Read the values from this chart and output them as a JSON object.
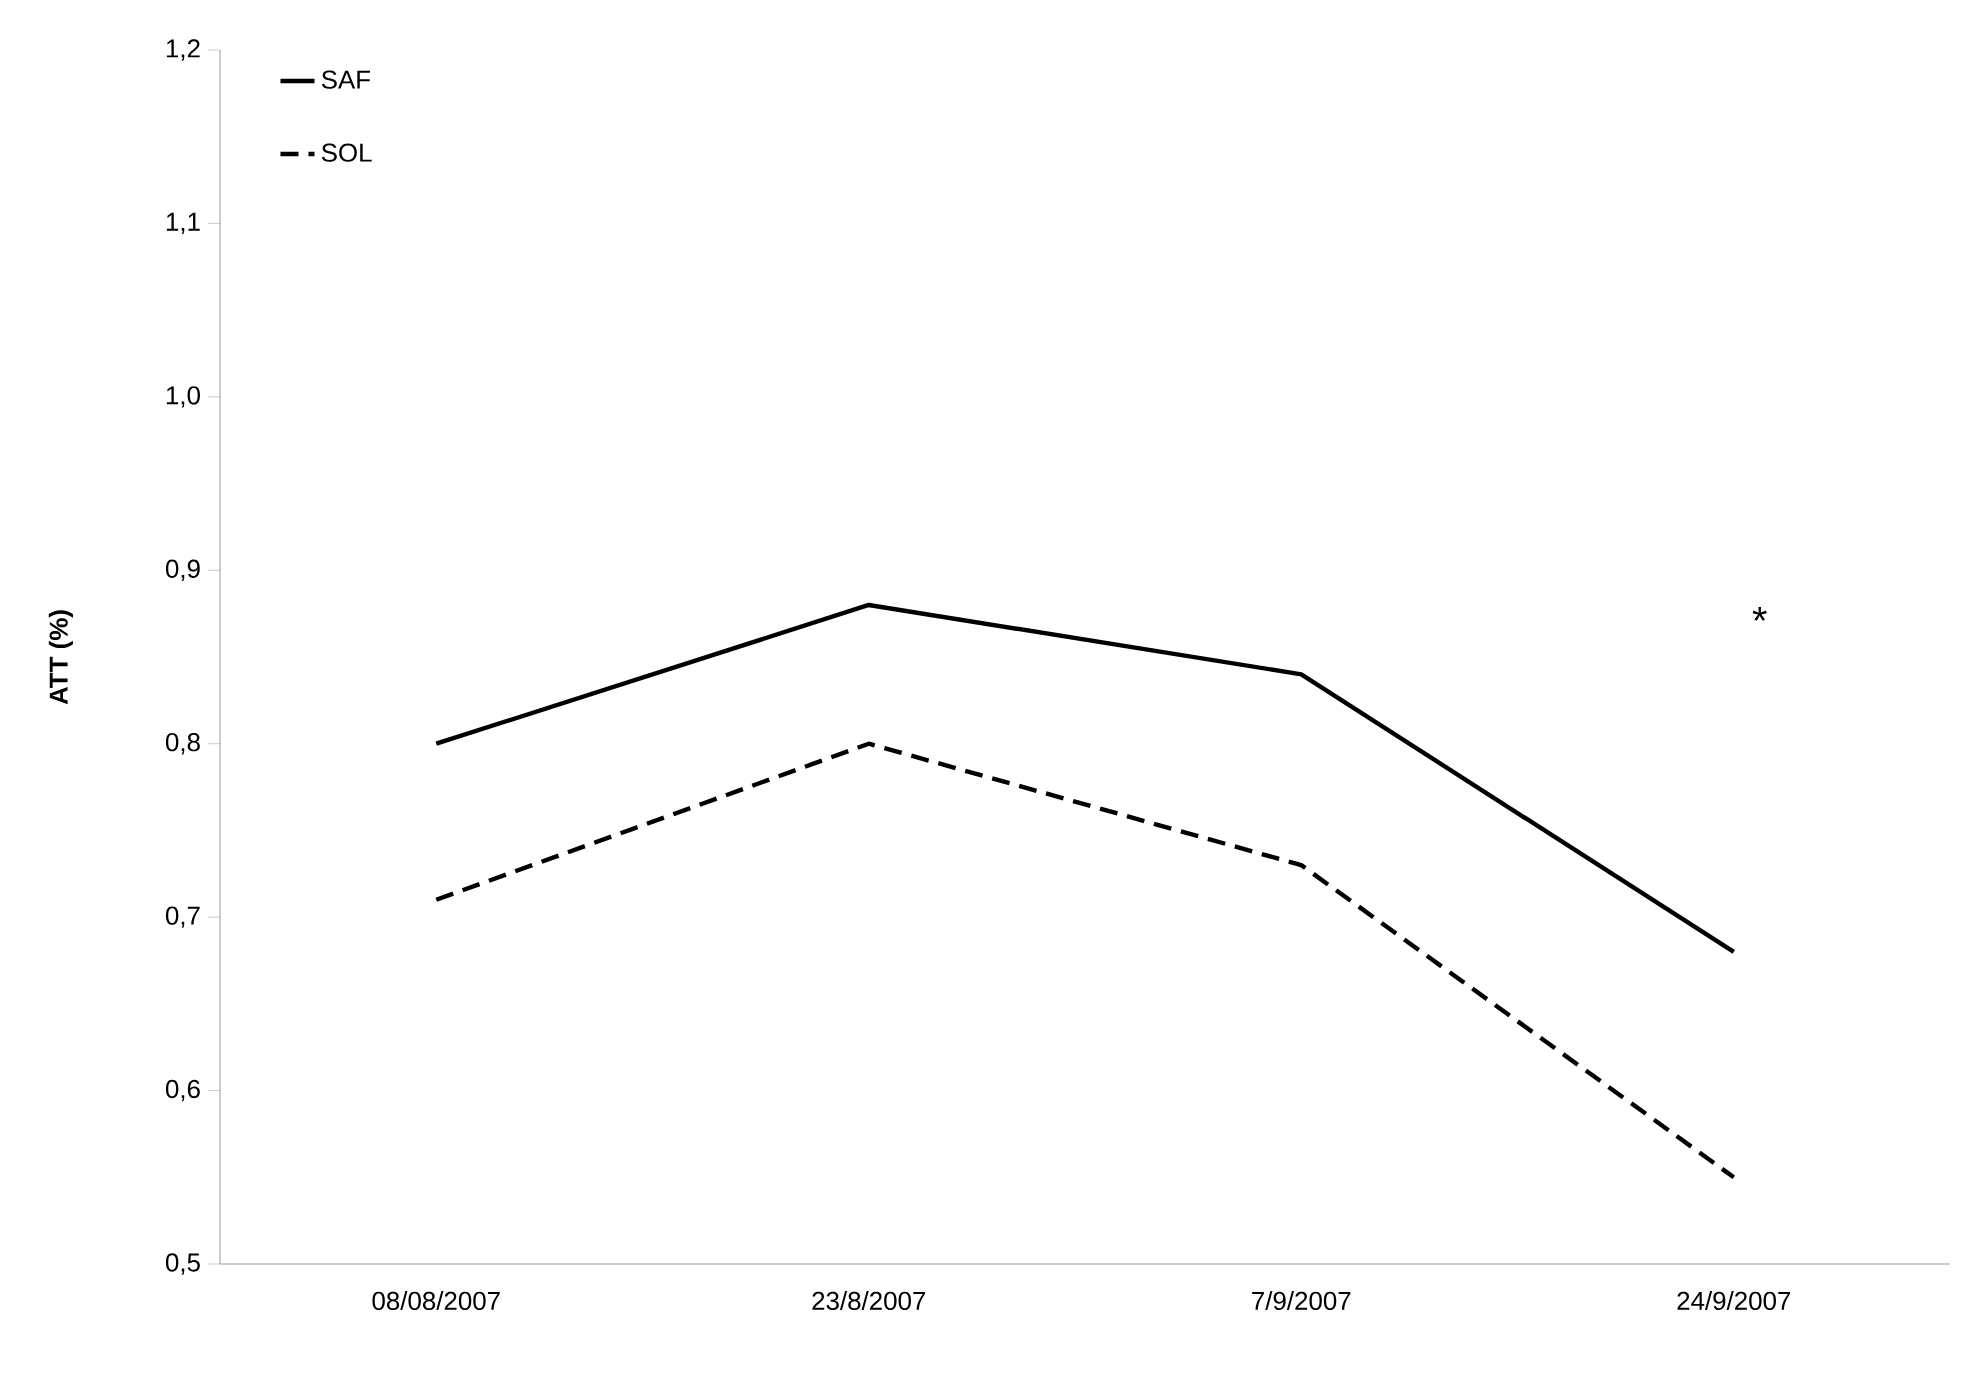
{
  "chart_data": {
    "type": "line",
    "ylabel": "ATT (%)",
    "categories": [
      "08/08/2007",
      "23/8/2007",
      "7/9/2007",
      "24/9/2007"
    ],
    "series": [
      {
        "name": "SAF",
        "color": "#000000",
        "line_style": "solid",
        "values": [
          0.8,
          0.88,
          0.84,
          0.68
        ]
      },
      {
        "name": "SOL",
        "color": "#000000",
        "line_style": "dashed",
        "values": [
          0.71,
          0.8,
          0.73,
          0.55
        ]
      }
    ],
    "ylim": [
      0.5,
      1.2
    ],
    "yticks": [
      {
        "value": 0.5,
        "label": "0,5"
      },
      {
        "value": 0.6,
        "label": "0,6"
      },
      {
        "value": 0.7,
        "label": "0,7"
      },
      {
        "value": 0.8,
        "label": "0,8"
      },
      {
        "value": 0.9,
        "label": "0,9"
      },
      {
        "value": 1.0,
        "label": "1,0"
      },
      {
        "value": 1.1,
        "label": "1,1"
      },
      {
        "value": 1.2,
        "label": "1,2"
      }
    ],
    "grid": false,
    "legend": "top left",
    "marker": "none",
    "annotations": [
      "*"
    ]
  }
}
